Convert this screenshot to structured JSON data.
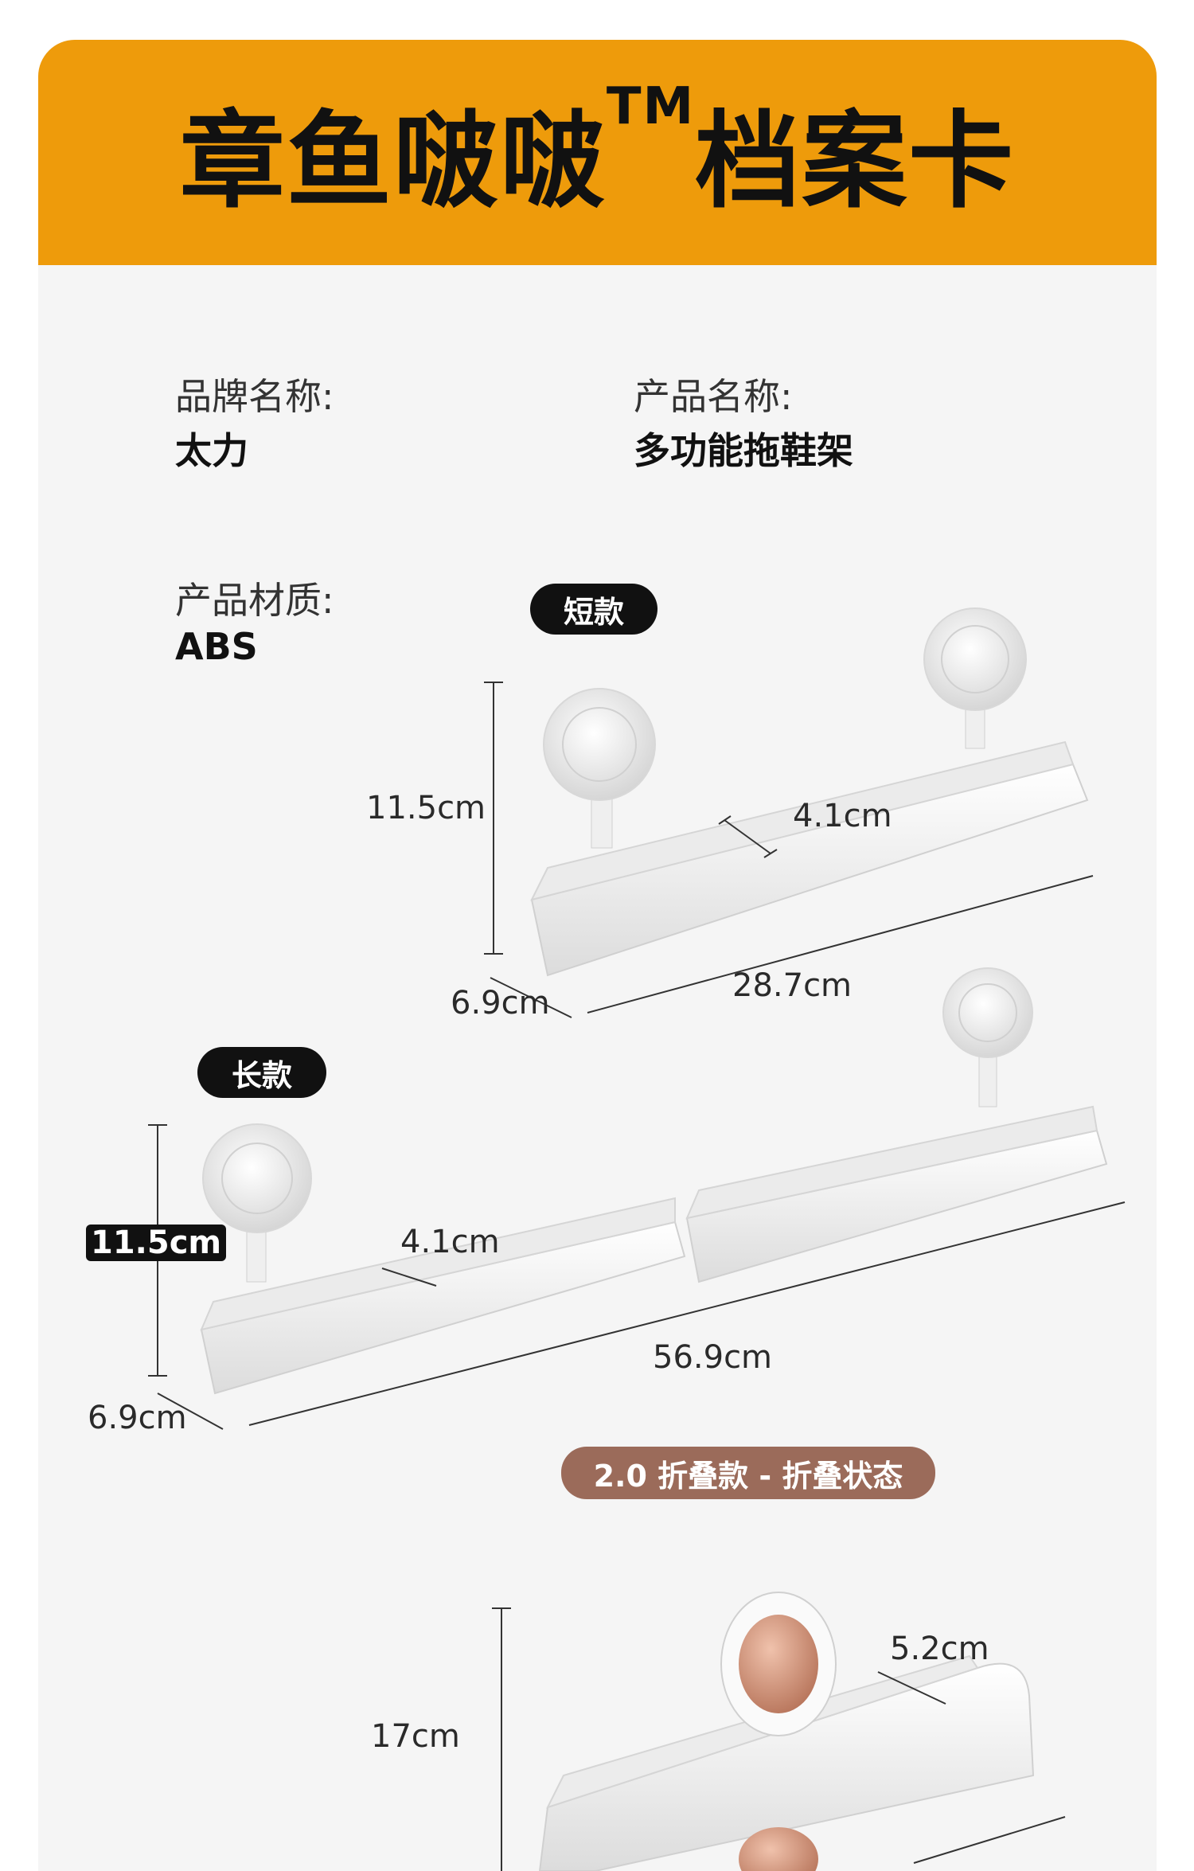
{
  "header": {
    "title": "章鱼啵啵",
    "tm": "TM",
    "title_suffix": "档案卡"
  },
  "info": {
    "brand_label": "品牌名称:",
    "brand_value": "太力",
    "product_label": "产品名称:",
    "product_value": "多功能拖鞋架",
    "material_label": "产品材质:",
    "material_value": "ABS"
  },
  "short_model": {
    "tag": "短款",
    "height": "11.5cm",
    "depth_inner": "4.1cm",
    "width": "6.9cm",
    "length": "28.7cm"
  },
  "long_model": {
    "tag": "长款",
    "height": "11.5cm",
    "depth_inner": "4.1cm",
    "width": "6.9cm",
    "length": "56.9cm"
  },
  "fold_model": {
    "tag": "2.0 折叠款 - 折叠状态",
    "height": "17cm",
    "depth_inner": "5.2cm",
    "accent_color": "#c58c74"
  }
}
